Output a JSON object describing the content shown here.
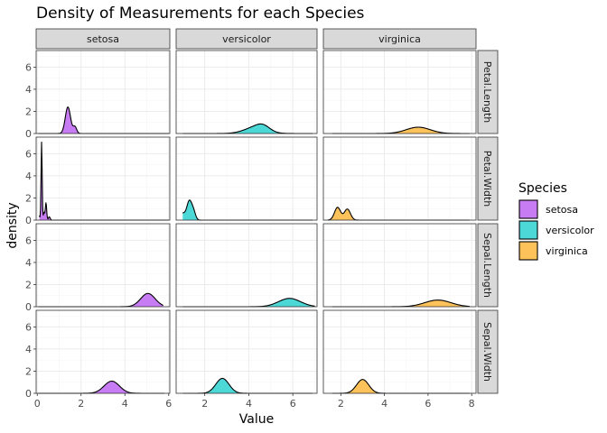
{
  "chart_data": {
    "type": "area",
    "title": "Density of Measurements for each Species",
    "xlabel": "Value",
    "ylabel": "density",
    "columns": [
      "setosa",
      "versicolor",
      "virginica"
    ],
    "rows": [
      "Petal.Length",
      "Petal.Width",
      "Sepal.Length",
      "Sepal.Width"
    ],
    "ylim": [
      0,
      7.5
    ],
    "yticks": [
      0,
      2,
      4,
      6
    ],
    "column_axes": [
      {
        "xlim": [
          -0.05,
          6.05
        ],
        "xticks": [
          0,
          2,
          4,
          6
        ]
      },
      {
        "xlim": [
          0.7,
          7.1
        ],
        "xticks": [
          2,
          4,
          6
        ]
      },
      {
        "xlim": [
          1.2,
          8.2
        ],
        "xticks": [
          2,
          4,
          6,
          8
        ]
      }
    ],
    "legend": {
      "title": "Species",
      "position": "right",
      "entries": [
        "setosa",
        "versicolor",
        "virginica"
      ]
    },
    "colors": {
      "setosa": "#c77cf3",
      "versicolor": "#4dd8d8",
      "virginica": "#fdc35a",
      "line": "#000000",
      "grid_major": "#ebebeb",
      "grid_minor": "#f5f5f5",
      "strip_fill": "#d9d9d9",
      "strip_border": "#333333",
      "panel_border": "#333333"
    },
    "grid": true,
    "panels": [
      {
        "row": "Petal.Length",
        "column": "setosa",
        "range": [
          0.05,
          6.0
        ],
        "peaks": [
          [
            1.4,
            0.12,
            2.4
          ],
          [
            1.72,
            0.08,
            0.6
          ]
        ]
      },
      {
        "row": "Petal.Length",
        "column": "versicolor",
        "range": [
          1.0,
          6.9
        ],
        "peaks": [
          [
            4.3,
            0.5,
            0.55
          ],
          [
            4.65,
            0.3,
            0.4
          ]
        ]
      },
      {
        "row": "Petal.Length",
        "column": "virginica",
        "range": [
          1.6,
          7.9
        ],
        "peaks": [
          [
            5.55,
            0.55,
            0.57
          ]
        ]
      },
      {
        "row": "Petal.Width",
        "column": "setosa",
        "range": [
          0.1,
          6.0
        ],
        "peaks": [
          [
            0.2,
            0.025,
            7.1
          ],
          [
            0.4,
            0.03,
            1.6
          ],
          [
            0.31,
            0.03,
            0.7
          ],
          [
            0.1,
            0.02,
            0.4
          ],
          [
            0.55,
            0.04,
            0.3
          ]
        ]
      },
      {
        "row": "Petal.Width",
        "column": "versicolor",
        "range": [
          1.0,
          6.9
        ],
        "peaks": [
          [
            1.3,
            0.12,
            1.75
          ],
          [
            1.0,
            0.1,
            0.55
          ],
          [
            1.5,
            0.09,
            0.6
          ]
        ]
      },
      {
        "row": "Petal.Width",
        "column": "virginica",
        "range": [
          1.4,
          7.9
        ],
        "peaks": [
          [
            1.85,
            0.14,
            1.15
          ],
          [
            2.3,
            0.14,
            1.0
          ]
        ]
      },
      {
        "row": "Sepal.Length",
        "column": "setosa",
        "range": [
          0.05,
          5.75
        ],
        "peaks": [
          [
            5.05,
            0.33,
            1.2
          ]
        ]
      },
      {
        "row": "Sepal.Length",
        "column": "versicolor",
        "range": [
          1.0,
          7.0
        ],
        "peaks": [
          [
            5.85,
            0.5,
            0.75
          ]
        ]
      },
      {
        "row": "Sepal.Length",
        "column": "virginica",
        "range": [
          1.6,
          7.9
        ],
        "peaks": [
          [
            6.45,
            0.6,
            0.6
          ]
        ]
      },
      {
        "row": "Sepal.Width",
        "column": "setosa",
        "range": [
          0.05,
          5.8
        ],
        "peaks": [
          [
            3.4,
            0.35,
            1.1
          ]
        ]
      },
      {
        "row": "Sepal.Width",
        "column": "versicolor",
        "range": [
          1.0,
          6.9
        ],
        "peaks": [
          [
            2.8,
            0.3,
            1.35
          ]
        ]
      },
      {
        "row": "Sepal.Width",
        "column": "virginica",
        "range": [
          1.6,
          7.9
        ],
        "peaks": [
          [
            3.0,
            0.28,
            1.25
          ]
        ]
      }
    ]
  }
}
